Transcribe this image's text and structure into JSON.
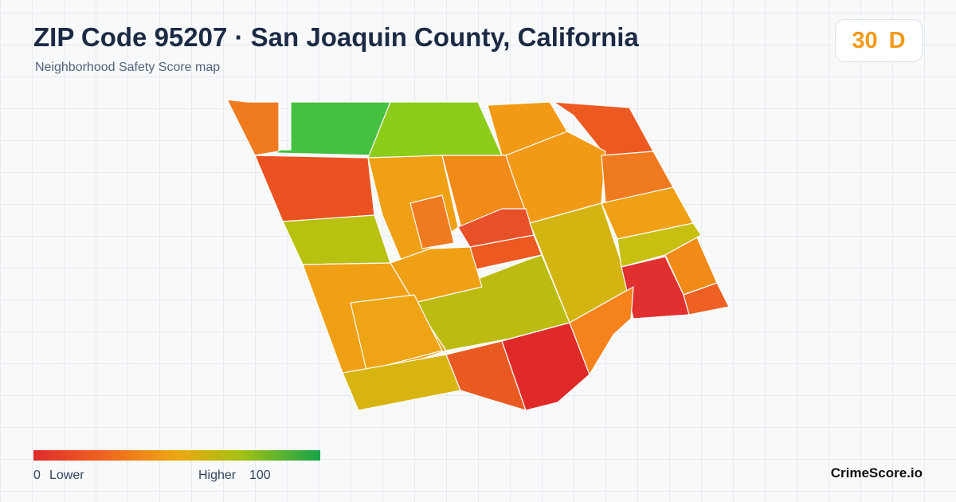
{
  "header": {
    "title": "ZIP Code 95207 · San Joaquin County, California",
    "subtitle": "Neighborhood Safety Score map"
  },
  "score": {
    "value": 30,
    "grade": "D"
  },
  "legend": {
    "min": 0,
    "min_label": "Lower",
    "max_label": "Higher",
    "max": 100
  },
  "footer": {
    "brand": "CrimeScore.io"
  }
}
